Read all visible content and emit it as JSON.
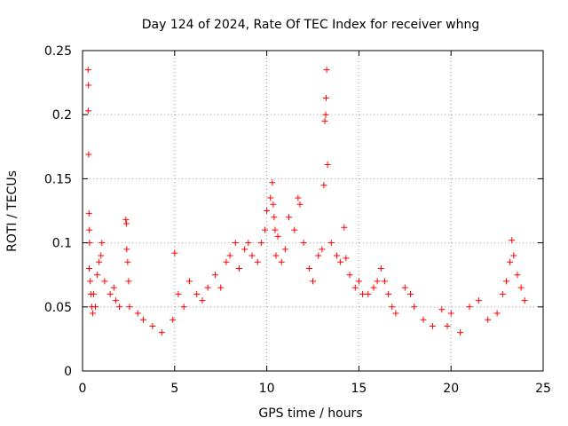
{
  "chart_data": {
    "type": "scatter",
    "title": "Day 124 of 2024, Rate Of TEC Index for receiver whng",
    "xlabel": "GPS time / hours",
    "ylabel": "ROTI / TECUs",
    "xlim": [
      0,
      25
    ],
    "ylim": [
      0,
      0.25
    ],
    "xticks": [
      0,
      5,
      10,
      15,
      20,
      25
    ],
    "xtick_labels": [
      "0",
      "5",
      "10",
      "15",
      "20",
      "25"
    ],
    "yticks": [
      0,
      0.05,
      0.1,
      0.15,
      0.2,
      0.25
    ],
    "ytick_labels": [
      "0",
      "0.05",
      "0.1",
      "0.15",
      "0.2",
      "0.25"
    ],
    "grid": true,
    "marker": "plus",
    "color": "#ff0000",
    "series": [
      {
        "name": "ROTI",
        "x": [
          0.3,
          0.32,
          0.31,
          0.33,
          0.35,
          0.37,
          0.38,
          0.36,
          0.42,
          0.45,
          0.5,
          0.55,
          0.6,
          0.7,
          0.8,
          0.9,
          1.0,
          1.05,
          1.2,
          1.5,
          1.7,
          1.8,
          2.0,
          2.35,
          2.38,
          2.4,
          2.45,
          2.5,
          2.55,
          3.0,
          3.3,
          3.8,
          4.3,
          4.9,
          5.0,
          5.2,
          5.5,
          5.8,
          6.2,
          6.5,
          6.8,
          7.2,
          7.5,
          7.8,
          8.0,
          8.3,
          8.5,
          8.8,
          9.0,
          9.2,
          9.5,
          9.7,
          9.9,
          10.0,
          10.2,
          10.3,
          10.35,
          10.4,
          10.45,
          10.5,
          10.6,
          10.8,
          11.0,
          11.2,
          11.5,
          11.7,
          11.8,
          12.0,
          12.3,
          12.5,
          12.8,
          13.0,
          13.1,
          13.15,
          13.2,
          13.22,
          13.25,
          13.3,
          13.5,
          13.8,
          14.0,
          14.2,
          14.3,
          14.5,
          14.8,
          15.0,
          15.2,
          15.5,
          15.8,
          16.0,
          16.2,
          16.4,
          16.6,
          16.8,
          17.0,
          17.5,
          17.8,
          18.0,
          18.5,
          19.0,
          19.5,
          19.8,
          20.0,
          20.5,
          21.0,
          21.5,
          22.0,
          22.5,
          22.8,
          23.0,
          23.2,
          23.3,
          23.4,
          23.6,
          23.8,
          24.0
        ],
        "y": [
          0.235,
          0.223,
          0.203,
          0.169,
          0.123,
          0.11,
          0.1,
          0.08,
          0.07,
          0.06,
          0.05,
          0.045,
          0.06,
          0.05,
          0.075,
          0.085,
          0.09,
          0.1,
          0.07,
          0.06,
          0.065,
          0.055,
          0.05,
          0.118,
          0.115,
          0.095,
          0.085,
          0.07,
          0.05,
          0.045,
          0.04,
          0.035,
          0.03,
          0.04,
          0.092,
          0.06,
          0.05,
          0.07,
          0.06,
          0.055,
          0.065,
          0.075,
          0.065,
          0.085,
          0.09,
          0.1,
          0.08,
          0.095,
          0.1,
          0.09,
          0.085,
          0.1,
          0.11,
          0.125,
          0.135,
          0.147,
          0.13,
          0.12,
          0.11,
          0.09,
          0.105,
          0.085,
          0.095,
          0.12,
          0.11,
          0.135,
          0.13,
          0.1,
          0.08,
          0.07,
          0.09,
          0.095,
          0.145,
          0.195,
          0.2,
          0.213,
          0.235,
          0.161,
          0.1,
          0.09,
          0.085,
          0.112,
          0.088,
          0.075,
          0.065,
          0.07,
          0.06,
          0.06,
          0.065,
          0.07,
          0.08,
          0.07,
          0.06,
          0.05,
          0.045,
          0.065,
          0.06,
          0.05,
          0.04,
          0.035,
          0.048,
          0.035,
          0.045,
          0.03,
          0.05,
          0.055,
          0.04,
          0.045,
          0.06,
          0.07,
          0.085,
          0.102,
          0.09,
          0.075,
          0.065,
          0.055
        ]
      }
    ]
  }
}
